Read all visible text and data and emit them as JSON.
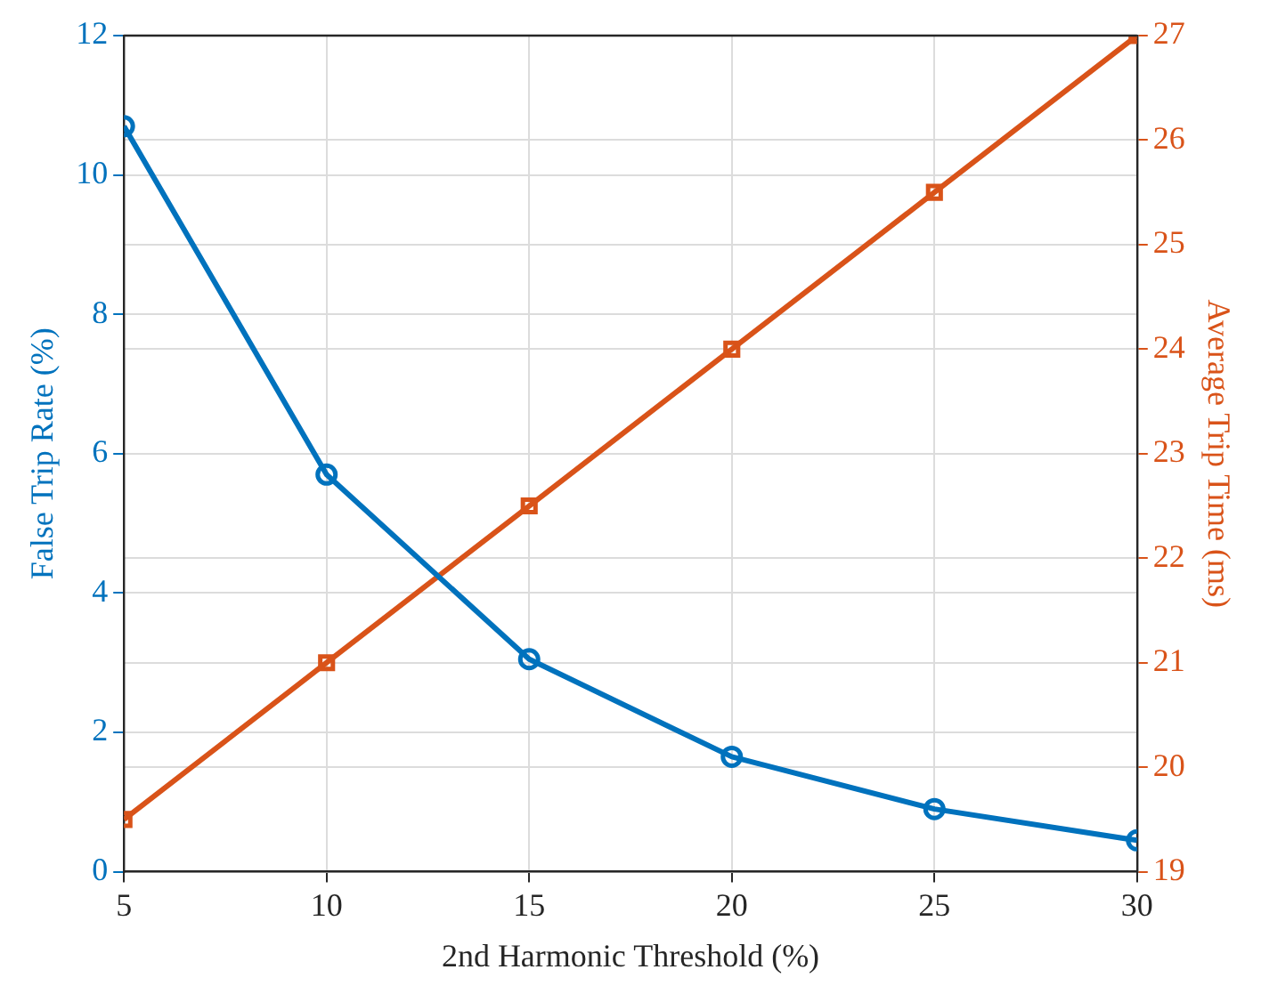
{
  "chart_data": {
    "type": "line",
    "xlabel": "2nd Harmonic Threshold (%)",
    "ylabel": "False Trip Rate (%)",
    "y2label": "Average Trip Time (ms)",
    "x": [
      5,
      10,
      15,
      20,
      25,
      30
    ],
    "xlim": [
      5,
      30
    ],
    "xticks": [
      5,
      10,
      15,
      20,
      25,
      30
    ],
    "ylim": [
      0,
      12
    ],
    "yticks": [
      0,
      2,
      4,
      6,
      8,
      10,
      12
    ],
    "y2lim": [
      19,
      27
    ],
    "y2ticks": [
      19,
      20,
      21,
      22,
      23,
      24,
      25,
      26,
      27
    ],
    "grid": true,
    "legend": false,
    "line_style": "solid",
    "series": [
      {
        "color": "#0072bd",
        "marker": "circle",
        "values": [
          10.7,
          5.7,
          3.05,
          1.65,
          0.9,
          0.45
        ]
      },
      {
        "color": "#d95319",
        "marker": "square",
        "axis": "y2",
        "values": [
          19.5,
          21,
          22.5,
          24,
          25.5,
          27
        ]
      }
    ]
  }
}
